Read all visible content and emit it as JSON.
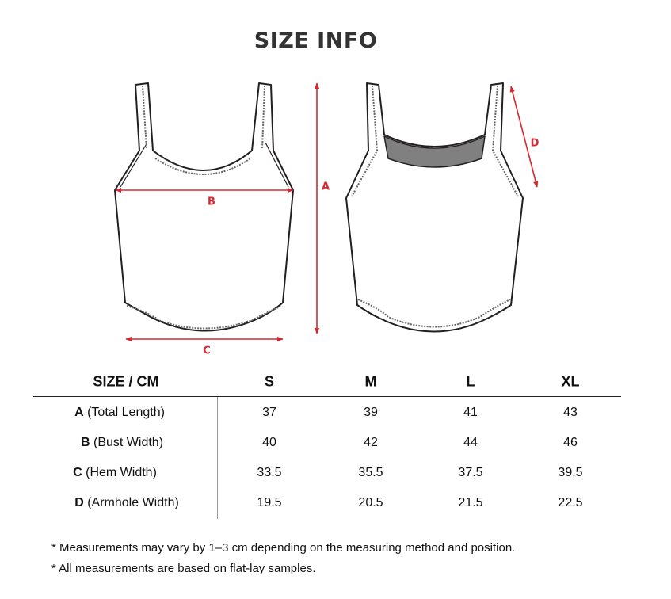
{
  "title": "SIZE INFO",
  "diagram_labels": {
    "A": "A",
    "B": "B",
    "C": "C",
    "D": "D"
  },
  "colors": {
    "measure": "#d9272e",
    "outline": "#231f20",
    "back_neck": "#808080"
  },
  "table": {
    "header": [
      "SIZE / CM",
      "S",
      "M",
      "L",
      "XL"
    ],
    "rows": [
      {
        "key": "A",
        "desc": "(Total Length)",
        "values": [
          "37",
          "39",
          "41",
          "43"
        ]
      },
      {
        "key": "B",
        "desc": "(Bust Width)",
        "values": [
          "40",
          "42",
          "44",
          "46"
        ]
      },
      {
        "key": "C",
        "desc": "(Hem Width)",
        "values": [
          "33.5",
          "35.5",
          "37.5",
          "39.5"
        ]
      },
      {
        "key": "D",
        "desc": "(Armhole Width)",
        "values": [
          "19.5",
          "20.5",
          "21.5",
          "22.5"
        ]
      }
    ]
  },
  "notes": [
    "* Measurements may vary by 1–3 cm depending on the measuring method and position.",
    "* All measurements are based on flat-lay samples."
  ]
}
